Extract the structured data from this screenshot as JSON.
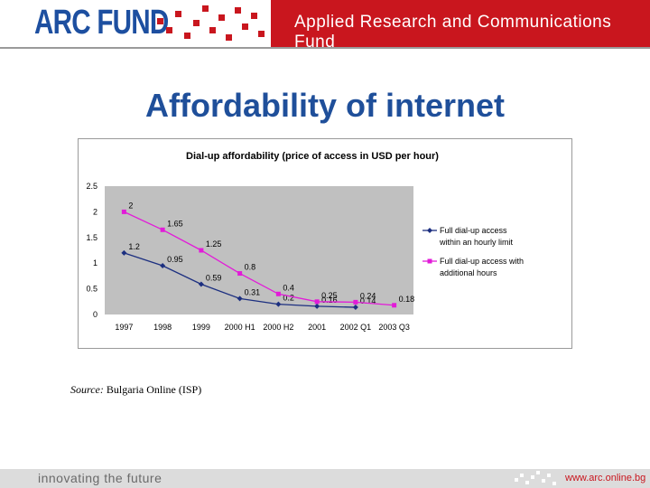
{
  "header": {
    "logo": "ARC FUND",
    "tagline": "Applied Research and Communications Fund"
  },
  "slide": {
    "title": "Affordability of internet"
  },
  "chart_data": {
    "type": "line",
    "title": "Dial-up affordability (price of access in USD per hour)",
    "categories": [
      "1997",
      "1998",
      "1999",
      "2000 H1",
      "2000 H2",
      "2001",
      "2002 Q1",
      "2003 Q3"
    ],
    "yticks": [
      "0",
      "0.5",
      "1",
      "1.5",
      "2",
      "2.5"
    ],
    "ylim": [
      0,
      2.5
    ],
    "grid": false,
    "legend_position": "right",
    "series": [
      {
        "name": "Full dial-up access within an hourly limit",
        "color": "#1c2f80",
        "marker": "diamond",
        "values": [
          1.2,
          0.95,
          0.59,
          0.31,
          0.2,
          0.16,
          0.14,
          null
        ],
        "labels": [
          "1.2",
          "0.95",
          "0.59",
          "0.31",
          "0.2",
          "0.16",
          "0.14",
          null
        ]
      },
      {
        "name": "Full dial-up access with additional hours",
        "color": "#e21bd8",
        "marker": "square",
        "values": [
          2,
          1.65,
          1.25,
          0.8,
          0.4,
          0.25,
          0.24,
          0.18
        ],
        "labels": [
          "2",
          "1.65",
          "1.25",
          "0.8",
          "0.4",
          "0.25",
          "0.24",
          "0.18"
        ]
      }
    ]
  },
  "source": {
    "label": "Source:",
    "text": " Bulgaria Online (ISP)"
  },
  "footer": {
    "slogan": "innovating the future",
    "url": "www.arc.online.bg"
  },
  "colors": {
    "brand_red": "#c9161e",
    "brand_blue": "#1d4fa0",
    "title_blue": "#1f4f9a",
    "plot_bg": "#c0c0c0"
  }
}
